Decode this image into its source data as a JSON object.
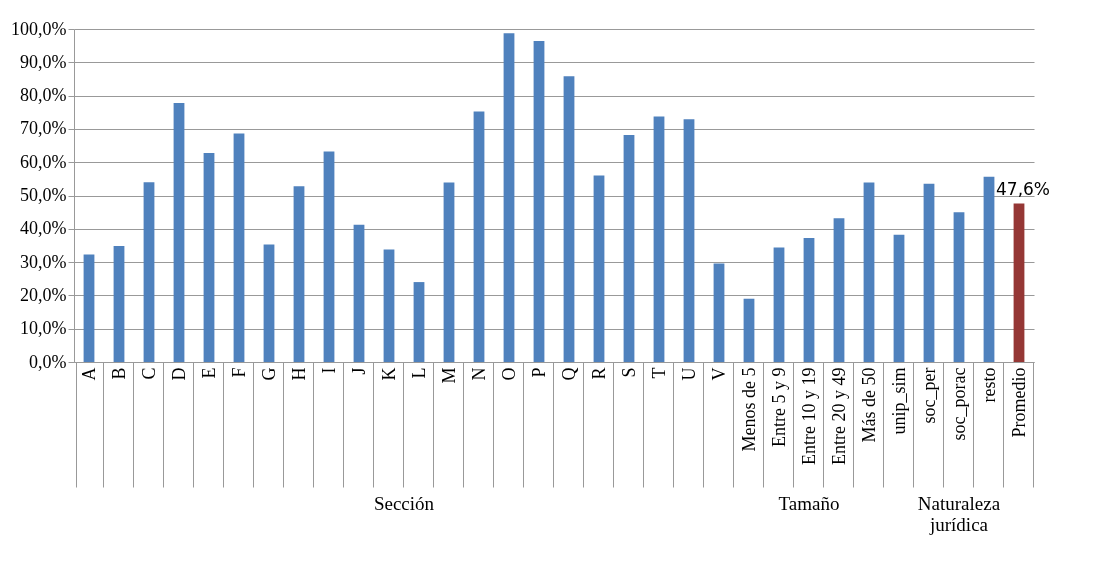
{
  "chart_data": {
    "type": "bar",
    "categories": [
      "A",
      "B",
      "C",
      "D",
      "E",
      "F",
      "G",
      "H",
      "I",
      "J",
      "K",
      "L",
      "M",
      "N",
      "O",
      "P",
      "Q",
      "R",
      "S",
      "T",
      "U",
      "V",
      "Menos de 5",
      "Entre 5 y 9",
      "Entre 10 y 19",
      "Entre 20 y 49",
      "Más de 50",
      "unip_sim",
      "soc_per",
      "soc_porac",
      "resto",
      "Promedio"
    ],
    "values": [
      32.3,
      34.8,
      54,
      77.8,
      62.8,
      68.6,
      35.3,
      52.8,
      63.2,
      41.2,
      33.8,
      24,
      53.9,
      75.2,
      98.7,
      96.4,
      85.8,
      56,
      68.2,
      73.7,
      72.9,
      29.6,
      19,
      34.4,
      37.2,
      43.2,
      53.9,
      38.2,
      53.5,
      45,
      55.6,
      47.6
    ],
    "colors": [
      "#4f81bd",
      "#4f81bd",
      "#4f81bd",
      "#4f81bd",
      "#4f81bd",
      "#4f81bd",
      "#4f81bd",
      "#4f81bd",
      "#4f81bd",
      "#4f81bd",
      "#4f81bd",
      "#4f81bd",
      "#4f81bd",
      "#4f81bd",
      "#4f81bd",
      "#4f81bd",
      "#4f81bd",
      "#4f81bd",
      "#4f81bd",
      "#4f81bd",
      "#4f81bd",
      "#4f81bd",
      "#4f81bd",
      "#4f81bd",
      "#4f81bd",
      "#4f81bd",
      "#4f81bd",
      "#4f81bd",
      "#4f81bd",
      "#4f81bd",
      "#4f81bd",
      "#953735"
    ],
    "value_labels": [
      null,
      null,
      null,
      null,
      null,
      null,
      null,
      null,
      null,
      null,
      null,
      null,
      null,
      null,
      null,
      null,
      null,
      null,
      null,
      null,
      null,
      null,
      null,
      null,
      null,
      null,
      null,
      null,
      null,
      null,
      null,
      "47,6%"
    ],
    "ylim": [
      0,
      100
    ],
    "yticks": [
      {
        "value": 0,
        "label": "0,0%"
      },
      {
        "value": 10,
        "label": "10,0%"
      },
      {
        "value": 20,
        "label": "20,0%"
      },
      {
        "value": 30,
        "label": "30,0%"
      },
      {
        "value": 40,
        "label": "40,0%"
      },
      {
        "value": 50,
        "label": "50,0%"
      },
      {
        "value": 60,
        "label": "60,0%"
      },
      {
        "value": 70,
        "label": "70,0%"
      },
      {
        "value": 80,
        "label": "80,0%"
      },
      {
        "value": 90,
        "label": "90,0%"
      },
      {
        "value": 100,
        "label": "100,0%"
      }
    ],
    "grid": "y",
    "legend": false,
    "annotations": [
      "Sección",
      "Tamaño",
      "Naturaleza jurídica"
    ]
  }
}
